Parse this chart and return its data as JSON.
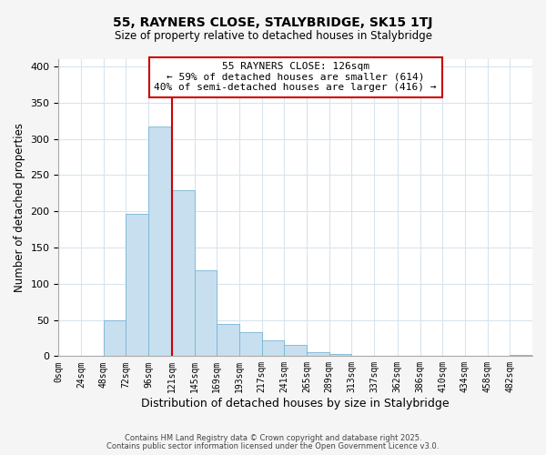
{
  "title": "55, RAYNERS CLOSE, STALYBRIDGE, SK15 1TJ",
  "subtitle": "Size of property relative to detached houses in Stalybridge",
  "xlabel": "Distribution of detached houses by size in Stalybridge",
  "ylabel": "Number of detached properties",
  "bar_values": [
    0,
    0,
    50,
    197,
    317,
    229,
    118,
    45,
    33,
    22,
    15,
    6,
    3,
    1,
    1,
    0,
    0,
    0,
    0,
    0,
    2
  ],
  "bin_edges": [
    0,
    24,
    48,
    72,
    96,
    121,
    145,
    169,
    193,
    217,
    241,
    265,
    289,
    313,
    337,
    362,
    386,
    410,
    434,
    458,
    482,
    506
  ],
  "tick_labels": [
    "0sqm",
    "24sqm",
    "48sqm",
    "72sqm",
    "96sqm",
    "121sqm",
    "145sqm",
    "169sqm",
    "193sqm",
    "217sqm",
    "241sqm",
    "265sqm",
    "289sqm",
    "313sqm",
    "337sqm",
    "362sqm",
    "386sqm",
    "410sqm",
    "434sqm",
    "458sqm",
    "482sqm"
  ],
  "bar_color": "#c8dff0",
  "bar_edge_color": "#7ab4d4",
  "vline_x": 121,
  "vline_color": "#cc0000",
  "ylim": [
    0,
    410
  ],
  "yticks": [
    0,
    50,
    100,
    150,
    200,
    250,
    300,
    350,
    400
  ],
  "annotation_title": "55 RAYNERS CLOSE: 126sqm",
  "annotation_line1": "← 59% of detached houses are smaller (614)",
  "annotation_line2": "40% of semi-detached houses are larger (416) →",
  "footer1": "Contains HM Land Registry data © Crown copyright and database right 2025.",
  "footer2": "Contains public sector information licensed under the Open Government Licence v3.0.",
  "background_color": "#f5f5f5",
  "plot_bg_color": "#ffffff",
  "grid_color": "#d8e4ed"
}
